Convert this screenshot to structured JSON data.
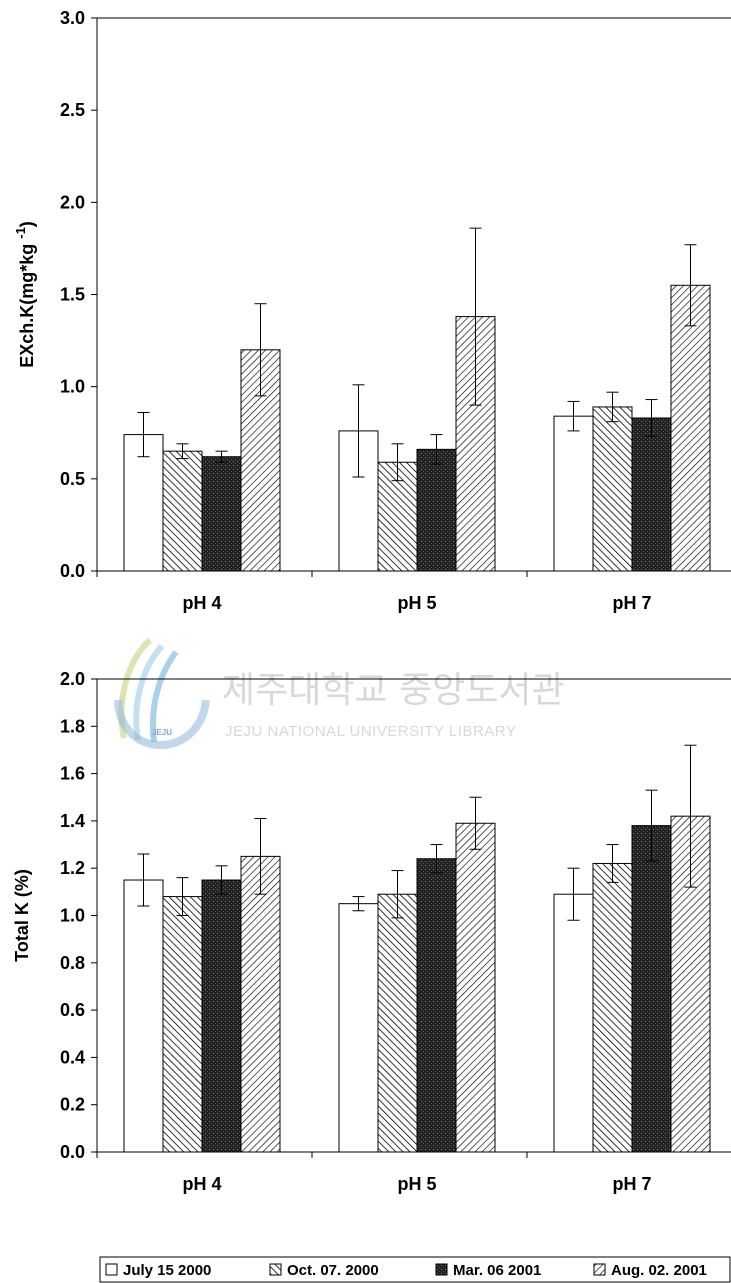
{
  "chart_data": [
    {
      "type": "bar",
      "title": "",
      "xlabel": "",
      "ylabel": "EXch.K(mg*kg -1)",
      "ylim": [
        0,
        3.0
      ],
      "yticks": [
        "0.0",
        "0.5",
        "1.0",
        "1.5",
        "2.0",
        "2.5",
        "3.0"
      ],
      "categories": [
        "pH 4",
        "pH 5",
        "pH 7"
      ],
      "series": [
        {
          "name": "July 15 2000",
          "values": [
            0.74,
            0.76,
            0.84
          ],
          "errors": [
            0.12,
            0.25,
            0.08
          ]
        },
        {
          "name": "Oct. 07. 2000",
          "values": [
            0.65,
            0.59,
            0.89
          ],
          "errors": [
            0.04,
            0.1,
            0.08
          ]
        },
        {
          "name": "Mar. 06 2001",
          "values": [
            0.62,
            0.66,
            0.83
          ],
          "errors": [
            0.03,
            0.08,
            0.1
          ]
        },
        {
          "name": "Aug. 02. 2001",
          "values": [
            1.2,
            1.38,
            1.55
          ],
          "errors": [
            0.25,
            0.48,
            0.22
          ]
        }
      ]
    },
    {
      "type": "bar",
      "title": "",
      "xlabel": "",
      "ylabel": "Total K (%)",
      "ylim": [
        0,
        2.0
      ],
      "yticks": [
        "0.0",
        "0.2",
        "0.4",
        "0.6",
        "0.8",
        "1.0",
        "1.2",
        "1.4",
        "1.6",
        "1.8",
        "2.0"
      ],
      "categories": [
        "pH 4",
        "pH 5",
        "pH 7"
      ],
      "series": [
        {
          "name": "July 15 2000",
          "values": [
            1.15,
            1.05,
            1.09
          ],
          "errors": [
            0.11,
            0.03,
            0.11
          ]
        },
        {
          "name": "Oct. 07. 2000",
          "values": [
            1.08,
            1.09,
            1.22
          ],
          "errors": [
            0.08,
            0.1,
            0.08
          ]
        },
        {
          "name": "Mar. 06 2001",
          "values": [
            1.15,
            1.24,
            1.38
          ],
          "errors": [
            0.06,
            0.06,
            0.15
          ]
        },
        {
          "name": "Aug. 02. 2001",
          "values": [
            1.25,
            1.39,
            1.42
          ],
          "errors": [
            0.16,
            0.11,
            0.3
          ]
        }
      ]
    }
  ],
  "legend": {
    "position": "bottom",
    "items": [
      "July 15 2000",
      "Oct. 07. 2000",
      "Mar. 06 2001",
      "Aug. 02. 2001"
    ]
  },
  "watermark": {
    "korean": "제주대학교 중앙도서관",
    "english": "JEJU NATIONAL UNIVERSITY LIBRARY",
    "emblem": "JEJU"
  }
}
